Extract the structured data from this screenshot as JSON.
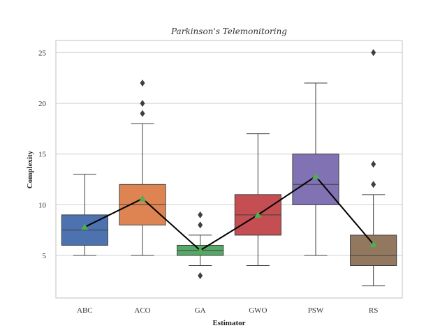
{
  "chart_data": {
    "type": "box",
    "title": "Parkinson's Telemonitoring",
    "xlabel": "Estimator",
    "ylabel": "Complexity",
    "ylim": [
      0.8,
      26.2
    ],
    "yticks": [
      5,
      10,
      15,
      20,
      25
    ],
    "grid": "horizontal",
    "categories": [
      "ABC",
      "ACO",
      "GA",
      "GWO",
      "PSW",
      "RS"
    ],
    "colors": [
      "#4c72b0",
      "#dd8452",
      "#55a868",
      "#c44e52",
      "#8172b3",
      "#937860"
    ],
    "boxes": [
      {
        "name": "ABC",
        "whisker_low": 5,
        "q1": 6,
        "median": 7.5,
        "q3": 9,
        "whisker_high": 13,
        "mean": 7.8,
        "outliers": []
      },
      {
        "name": "ACO",
        "whisker_low": 5,
        "q1": 8,
        "median": 10,
        "q3": 12,
        "whisker_high": 18,
        "mean": 10.6,
        "outliers": [
          19,
          20,
          22
        ]
      },
      {
        "name": "GA",
        "whisker_low": 4,
        "q1": 5,
        "median": 5.5,
        "q3": 6,
        "whisker_high": 7,
        "mean": 5.5,
        "outliers": [
          3,
          8,
          9
        ]
      },
      {
        "name": "GWO",
        "whisker_low": 4,
        "q1": 7,
        "median": 9,
        "q3": 11,
        "whisker_high": 17,
        "mean": 9.0,
        "outliers": []
      },
      {
        "name": "PSW",
        "whisker_low": 5,
        "q1": 10,
        "median": 12,
        "q3": 15,
        "whisker_high": 22,
        "mean": 12.8,
        "outliers": []
      },
      {
        "name": "RS",
        "whisker_low": 2,
        "q1": 4,
        "median": 5,
        "q3": 7,
        "whisker_high": 11,
        "mean": 6.1,
        "outliers": [
          12,
          14,
          25
        ]
      }
    ],
    "mean_line_color": "#000000",
    "mean_marker_color": "#4caf50"
  }
}
